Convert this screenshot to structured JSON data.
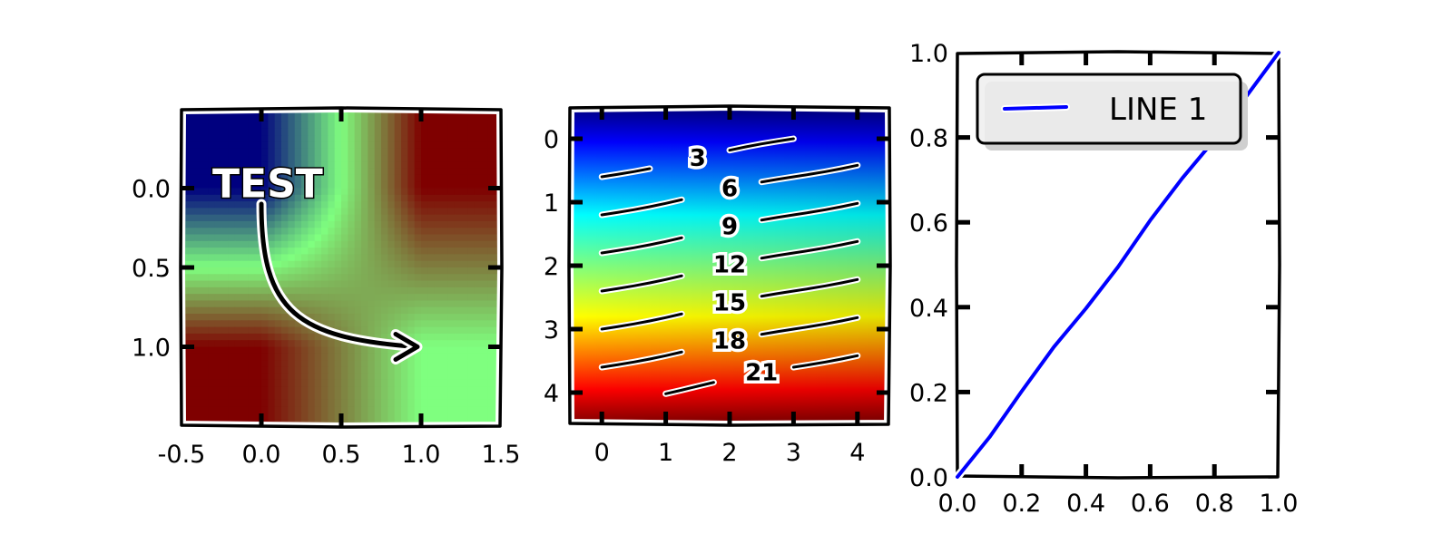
{
  "chart_data": [
    {
      "type": "heatmap",
      "title": "",
      "xlabel": "",
      "ylabel": "",
      "xlim": [
        -0.5,
        1.5
      ],
      "ylim": [
        1.5,
        -0.5
      ],
      "x_ticks": [
        "-0.5",
        "0.0",
        "0.5",
        "1.0",
        "1.5"
      ],
      "y_ticks": [
        "0.0",
        "0.5",
        "1.0"
      ],
      "grid": [
        [
          0.0,
          1.0
        ],
        [
          1.0,
          0.5
        ]
      ],
      "colormap": [
        "#00007f",
        "#7fff7f",
        "#7f0000"
      ],
      "annotation": {
        "text": "TEST",
        "text_at": [
          -0.25,
          0.0
        ],
        "arrow_from": [
          0.0,
          0.1
        ],
        "arrow_to": [
          1.0,
          1.0
        ]
      }
    },
    {
      "type": "heatmap",
      "title": "",
      "xlabel": "",
      "ylabel": "",
      "xlim": [
        -0.5,
        4.5
      ],
      "ylim": [
        4.5,
        -0.5
      ],
      "x_ticks": [
        "0",
        "1",
        "2",
        "3",
        "4"
      ],
      "y_ticks": [
        "0",
        "1",
        "2",
        "3",
        "4"
      ],
      "grid": [
        [
          0,
          1,
          2,
          3,
          4
        ],
        [
          5,
          6,
          7,
          8,
          9
        ],
        [
          10,
          11,
          12,
          13,
          14
        ],
        [
          15,
          16,
          17,
          18,
          19
        ],
        [
          20,
          21,
          22,
          23,
          24
        ]
      ],
      "colormap": "jet",
      "contour_levels": [
        "3",
        "6",
        "9",
        "12",
        "15",
        "18",
        "21"
      ],
      "contour_color": "#000000"
    },
    {
      "type": "line",
      "title": "",
      "xlabel": "",
      "ylabel": "",
      "xlim": [
        0.0,
        1.0
      ],
      "ylim": [
        0.0,
        1.0
      ],
      "x_ticks": [
        "0.0",
        "0.2",
        "0.4",
        "0.6",
        "0.8",
        "1.0"
      ],
      "y_ticks": [
        "0.0",
        "0.2",
        "0.4",
        "0.6",
        "0.8",
        "1.0"
      ],
      "legend_position": "top-left",
      "series": [
        {
          "name": "LINE 1",
          "color": "#0000ff",
          "x": [
            0.0,
            0.1,
            0.2,
            0.3,
            0.4,
            0.5,
            0.6,
            0.7,
            0.8,
            0.9,
            1.0
          ],
          "y": [
            0.0,
            0.1,
            0.2,
            0.3,
            0.4,
            0.5,
            0.6,
            0.7,
            0.8,
            0.9,
            1.0
          ]
        }
      ]
    }
  ]
}
